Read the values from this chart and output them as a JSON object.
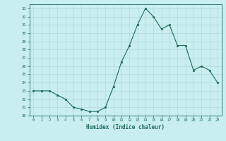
{
  "x": [
    0,
    1,
    2,
    3,
    4,
    5,
    6,
    7,
    8,
    9,
    10,
    11,
    12,
    13,
    14,
    15,
    16,
    17,
    18,
    19,
    20,
    21,
    22,
    23
  ],
  "y": [
    23.0,
    23.0,
    23.0,
    22.5,
    22.0,
    21.0,
    20.8,
    20.5,
    20.5,
    21.0,
    23.5,
    26.5,
    28.5,
    31.0,
    33.0,
    32.0,
    30.5,
    31.0,
    28.5,
    28.5,
    25.5,
    26.0,
    25.5,
    24.0
  ],
  "xlabel": "Humidex (Indice chaleur)",
  "ylim": [
    20,
    33.5
  ],
  "xlim": [
    -0.5,
    23.5
  ],
  "yticks": [
    20,
    21,
    22,
    23,
    24,
    25,
    26,
    27,
    28,
    29,
    30,
    31,
    32,
    33
  ],
  "xticks": [
    0,
    1,
    2,
    3,
    4,
    5,
    6,
    7,
    8,
    9,
    10,
    11,
    12,
    13,
    14,
    15,
    16,
    17,
    18,
    19,
    20,
    21,
    22,
    23
  ],
  "line_color": "#1a6b5a",
  "marker_color": "#1a6b5a",
  "bg_color": "#c8eef0",
  "grid_color": "#b0d8da",
  "tick_label_color": "#1a6b5a",
  "axis_label_color": "#1a6b5a"
}
